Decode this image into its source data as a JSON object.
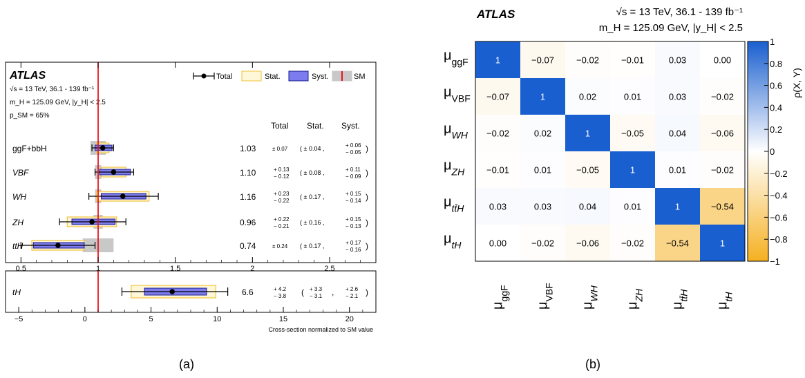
{
  "panel_a": {
    "caption": "(a)",
    "experiment": "ATLAS",
    "energy_line": "√s = 13 TeV, 36.1 - 139 fb⁻¹",
    "mass_line": "m_H = 125.09 GeV, |y_H| < 2.5",
    "psm_line": "p_SM = 65%",
    "legend": {
      "total": "Total",
      "stat": "Stat.",
      "syst": "Syst.",
      "sm": "SM"
    },
    "col_headers": {
      "total": "Total",
      "stat": "Stat.",
      "syst": "Syst."
    },
    "xlabel": "Cross-section normalized to SM value",
    "colors": {
      "stat_fill": "#fff8d8",
      "stat_edge": "#f2c23a",
      "syst_fill": "#7c7cee",
      "syst_edge": "#1c1c8c",
      "sm_line": "#e8141e",
      "sm_band": "#c8c8c8"
    }
  },
  "panel_b": {
    "caption": "(b)",
    "experiment": "ATLAS",
    "energy_line": "√s = 13 TeV, 36.1 - 139 fb⁻¹",
    "mass_line": "m_H = 125.09 GeV, |y_H| < 2.5",
    "colorbar_label": "ρ(X, Y)",
    "colors": {
      "positive": "#1a5fcf",
      "negative": "#f5b020",
      "zero": "#ffffff"
    }
  },
  "chart_data": [
    {
      "type": "errorbar",
      "xlim": [
        0.4,
        2.8
      ],
      "xticks": [
        "0.5",
        "1",
        "1.5",
        "2",
        "2.5"
      ],
      "reference": 1,
      "rows": [
        {
          "label": "ggF+bbH",
          "value": 1.03,
          "value_text": "1.03",
          "total_up": 0.07,
          "total_down": 0.07,
          "stat_up": 0.04,
          "stat_down": 0.04,
          "syst_up": 0.06,
          "syst_down": 0.05,
          "total_sym": "± 0.07",
          "stat_sym": "( ± 0.04 ,",
          "syst_hi": "+ 0.06",
          "syst_lo": "− 0.05",
          "sm_unc": 0.05
        },
        {
          "label": "VBF",
          "value": 1.1,
          "value_text": "1.10",
          "total_up": 0.13,
          "total_down": 0.12,
          "stat_up": 0.08,
          "stat_down": 0.08,
          "syst_up": 0.11,
          "syst_down": 0.09,
          "total_hi": "+ 0.13",
          "total_lo": "− 0.12",
          "stat_sym": "( ± 0.08 ,",
          "syst_hi": "+ 0.11",
          "syst_lo": "− 0.09",
          "sm_unc": 0.02
        },
        {
          "label": "WH",
          "value": 1.16,
          "value_text": "1.16",
          "total_up": 0.23,
          "total_down": 0.22,
          "stat_up": 0.17,
          "stat_down": 0.17,
          "syst_up": 0.15,
          "syst_down": 0.14,
          "total_hi": "+ 0.23",
          "total_lo": "− 0.22",
          "stat_sym": "( ± 0.17 ,",
          "syst_hi": "+ 0.15",
          "syst_lo": "− 0.14",
          "sm_unc": 0.02
        },
        {
          "label": "ZH",
          "value": 0.96,
          "value_text": "0.96",
          "total_up": 0.22,
          "total_down": 0.21,
          "stat_up": 0.16,
          "stat_down": 0.16,
          "syst_up": 0.15,
          "syst_down": 0.13,
          "total_hi": "+ 0.22",
          "total_lo": "− 0.21",
          "stat_sym": "( ± 0.16 ,",
          "syst_hi": "+ 0.15",
          "syst_lo": "− 0.13",
          "sm_unc": 0.03
        },
        {
          "label": "ttH",
          "value": 0.74,
          "value_text": "0.74",
          "total_up": 0.24,
          "total_down": 0.24,
          "stat_up": 0.17,
          "stat_down": 0.17,
          "syst_up": 0.17,
          "syst_down": 0.16,
          "total_sym": "± 0.24",
          "stat_sym": "( ± 0.17 ,",
          "syst_hi": "+ 0.17",
          "syst_lo": "− 0.16",
          "sm_unc_up": 0.1,
          "sm_unc_down": 0.1
        }
      ]
    },
    {
      "type": "errorbar",
      "xlim": [
        -6,
        22
      ],
      "xticks": [
        "−5",
        "0",
        "5",
        "10",
        "15",
        "20"
      ],
      "reference": 1,
      "rows": [
        {
          "label": "tH",
          "value": 6.6,
          "value_text": "6.6",
          "total_up": 4.2,
          "total_down": 3.8,
          "stat_up": 3.3,
          "stat_down": 3.1,
          "syst_up": 2.6,
          "syst_down": 2.1,
          "total_hi": "+ 4.2",
          "total_lo": "− 3.8",
          "stat_hi": "+ 3.3",
          "stat_lo": "− 3.1",
          "syst_hi": "+ 2.6",
          "syst_lo": "− 2.1"
        }
      ]
    },
    {
      "type": "heatmap",
      "labels": [
        "ggF",
        "VBF",
        "WH",
        "ZH",
        "tt̄H",
        "tH"
      ],
      "matrix": [
        [
          1,
          -0.07,
          -0.02,
          -0.01,
          0.03,
          0.0
        ],
        [
          -0.07,
          1,
          0.02,
          0.01,
          0.03,
          -0.02
        ],
        [
          -0.02,
          0.02,
          1,
          -0.05,
          0.04,
          -0.06
        ],
        [
          -0.01,
          0.01,
          -0.05,
          1,
          0.01,
          -0.02
        ],
        [
          0.03,
          0.03,
          0.04,
          0.01,
          1,
          -0.54
        ],
        [
          0.0,
          -0.02,
          -0.06,
          -0.02,
          -0.54,
          1
        ]
      ],
      "cell_text": [
        [
          "1",
          "−0.07",
          "−0.02",
          "−0.01",
          "0.03",
          "0.00"
        ],
        [
          "−0.07",
          "1",
          "0.02",
          "0.01",
          "0.03",
          "−0.02"
        ],
        [
          "−0.02",
          "0.02",
          "1",
          "−0.05",
          "0.04",
          "−0.06"
        ],
        [
          "−0.01",
          "0.01",
          "−0.05",
          "1",
          "0.01",
          "−0.02"
        ],
        [
          "0.03",
          "0.03",
          "0.04",
          "0.01",
          "1",
          "−0.54"
        ],
        [
          "0.00",
          "−0.02",
          "−0.06",
          "−0.02",
          "−0.54",
          "1"
        ]
      ],
      "zlim": [
        -1,
        1
      ],
      "colorbar_ticks": [
        "1",
        "0.8",
        "0.6",
        "0.4",
        "0.2",
        "0",
        "−0.2",
        "−0.4",
        "−0.6",
        "−0.8",
        "−1"
      ]
    }
  ]
}
